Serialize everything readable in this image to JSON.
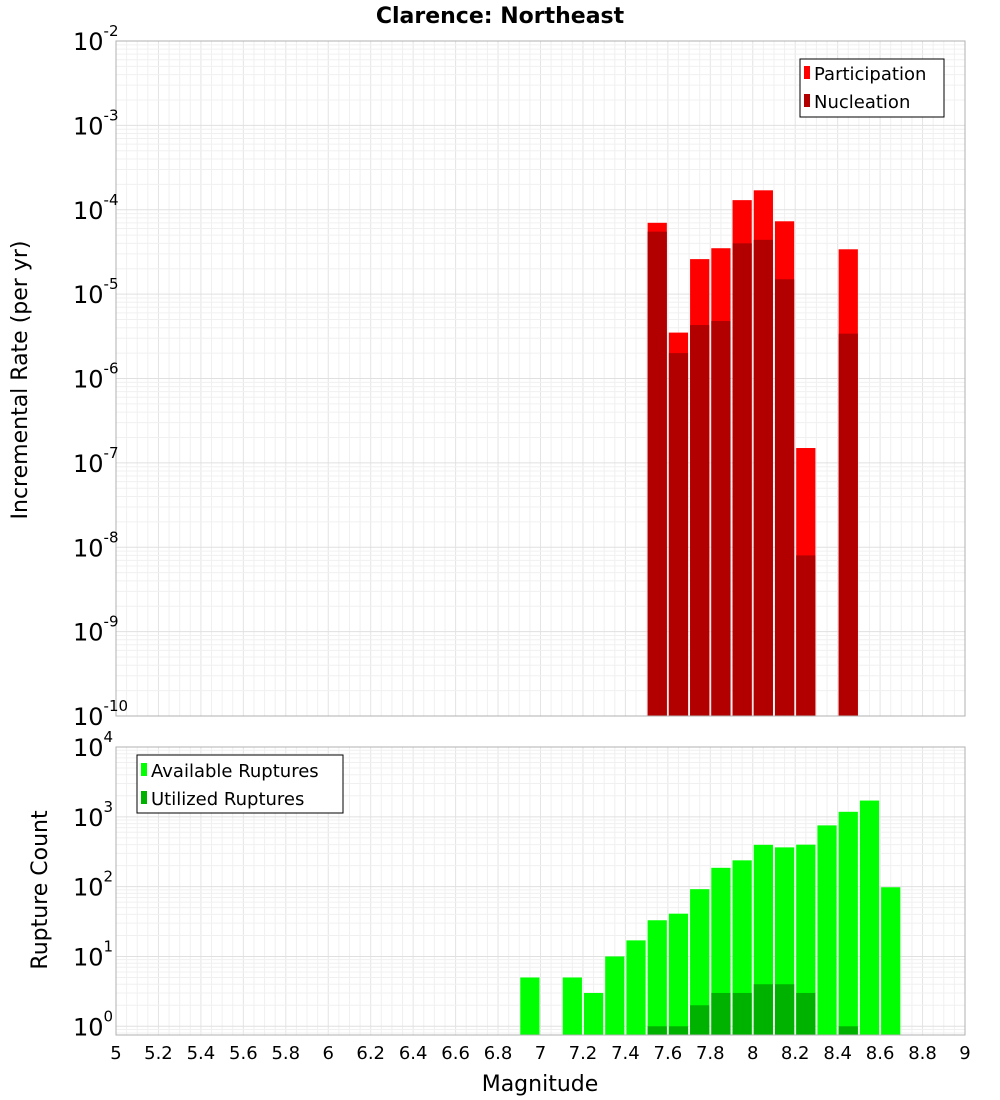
{
  "chart_data": [
    {
      "type": "bar",
      "title": "Clarence: Northeast",
      "ylabel": "Incremental Rate (per yr)",
      "yscale": "log",
      "ylim": [
        1e-10,
        0.01
      ],
      "ytick_exponents": [
        "-10",
        "-9",
        "-8",
        "-7",
        "-6",
        "-5",
        "-4",
        "-3",
        "-2"
      ],
      "xlim": [
        5,
        9
      ],
      "bin_width": 0.1,
      "grid": true,
      "legend_position": "top-right",
      "colors": {
        "Participation": "#ff0000",
        "Nucleation": "#b20000"
      },
      "x": [
        7.55,
        7.65,
        7.75,
        7.85,
        7.95,
        8.05,
        8.15,
        8.25,
        8.45
      ],
      "series": [
        {
          "name": "Participation",
          "values": [
            7e-05,
            3.5e-06,
            2.6e-05,
            3.5e-05,
            0.00013,
            0.00017,
            7.3e-05,
            1.5e-07,
            3.4e-05
          ]
        },
        {
          "name": "Nucleation",
          "values": [
            5.5e-05,
            2e-06,
            4.3e-06,
            4.8e-06,
            4e-05,
            4.4e-05,
            1.5e-05,
            8e-09,
            3.4e-06
          ]
        }
      ]
    },
    {
      "type": "bar",
      "xlabel": "Magnitude",
      "ylabel": "Rupture Count",
      "yscale": "log",
      "ylim": [
        0.75,
        10000
      ],
      "ytick_exponents": [
        "0",
        "1",
        "2",
        "3",
        "4"
      ],
      "xlim": [
        5,
        9
      ],
      "xticks": [
        "5",
        "5.2",
        "5.4",
        "5.6",
        "5.8",
        "6",
        "6.2",
        "6.4",
        "6.6",
        "6.8",
        "7",
        "7.2",
        "7.4",
        "7.6",
        "7.8",
        "8",
        "8.2",
        "8.4",
        "8.6",
        "8.8",
        "9"
      ],
      "bin_width": 0.1,
      "grid": true,
      "legend_position": "top-left",
      "colors": {
        "Available Ruptures": "#00ff00",
        "Utilized Ruptures": "#00b200"
      },
      "x": [
        6.95,
        7.15,
        7.25,
        7.35,
        7.45,
        7.55,
        7.65,
        7.75,
        7.85,
        7.95,
        8.05,
        8.15,
        8.25,
        8.35,
        8.45,
        8.55,
        8.65
      ],
      "series": [
        {
          "name": "Available Ruptures",
          "values": [
            5,
            5,
            3,
            10,
            17,
            33,
            41,
            92,
            186,
            238,
            397,
            365,
            399,
            754,
            1180,
            1710,
            98
          ]
        },
        {
          "name": "Utilized Ruptures",
          "values": [
            0,
            0,
            0,
            0,
            0,
            1,
            1,
            2,
            3,
            3,
            4,
            4,
            3,
            0,
            1,
            0,
            0
          ]
        }
      ]
    }
  ]
}
